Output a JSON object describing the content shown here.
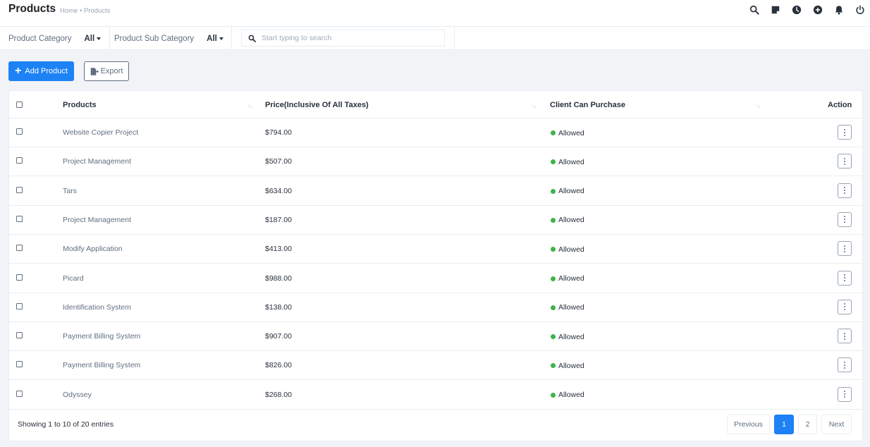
{
  "header": {
    "title": "Products",
    "breadcrumb": "Home • Products",
    "icons": [
      "search-icon",
      "sticky-note-icon",
      "clock-icon",
      "plus-circle-icon",
      "bell-icon",
      "power-icon"
    ]
  },
  "filters": {
    "category_label": "Product Category",
    "category_value": "All",
    "subcategory_label": "Product Sub Category",
    "subcategory_value": "All",
    "search_placeholder": "Start typing to search"
  },
  "actions": {
    "add_label": "Add Product",
    "export_label": "Export"
  },
  "table": {
    "columns": {
      "product": "Products",
      "price": "Price(Inclusive Of All Taxes)",
      "client_purchase": "Client Can Purchase",
      "action": "Action"
    },
    "rows": [
      {
        "name": "Website Copier Project",
        "price": "$794.00",
        "status": "Allowed"
      },
      {
        "name": "Project Management",
        "price": "$507.00",
        "status": "Allowed"
      },
      {
        "name": "Tars",
        "price": "$634.00",
        "status": "Allowed"
      },
      {
        "name": "Project Management",
        "price": "$187.00",
        "status": "Allowed"
      },
      {
        "name": "Modify Application",
        "price": "$413.00",
        "status": "Allowed"
      },
      {
        "name": "Picard",
        "price": "$988.00",
        "status": "Allowed"
      },
      {
        "name": "Identification System",
        "price": "$138.00",
        "status": "Allowed"
      },
      {
        "name": "Payment Billing System",
        "price": "$907.00",
        "status": "Allowed"
      },
      {
        "name": "Payment Billing System",
        "price": "$826.00",
        "status": "Allowed"
      },
      {
        "name": "Odyssey",
        "price": "$268.00",
        "status": "Allowed"
      }
    ]
  },
  "footer": {
    "info": "Showing 1 to 10 of 20 entries",
    "previous_label": "Previous",
    "pages": [
      "1",
      "2"
    ],
    "active_page": "1",
    "next_label": "Next"
  },
  "colors": {
    "primary": "#1d82f5",
    "allowed": "#39b54a",
    "background": "#f1f3f7"
  }
}
